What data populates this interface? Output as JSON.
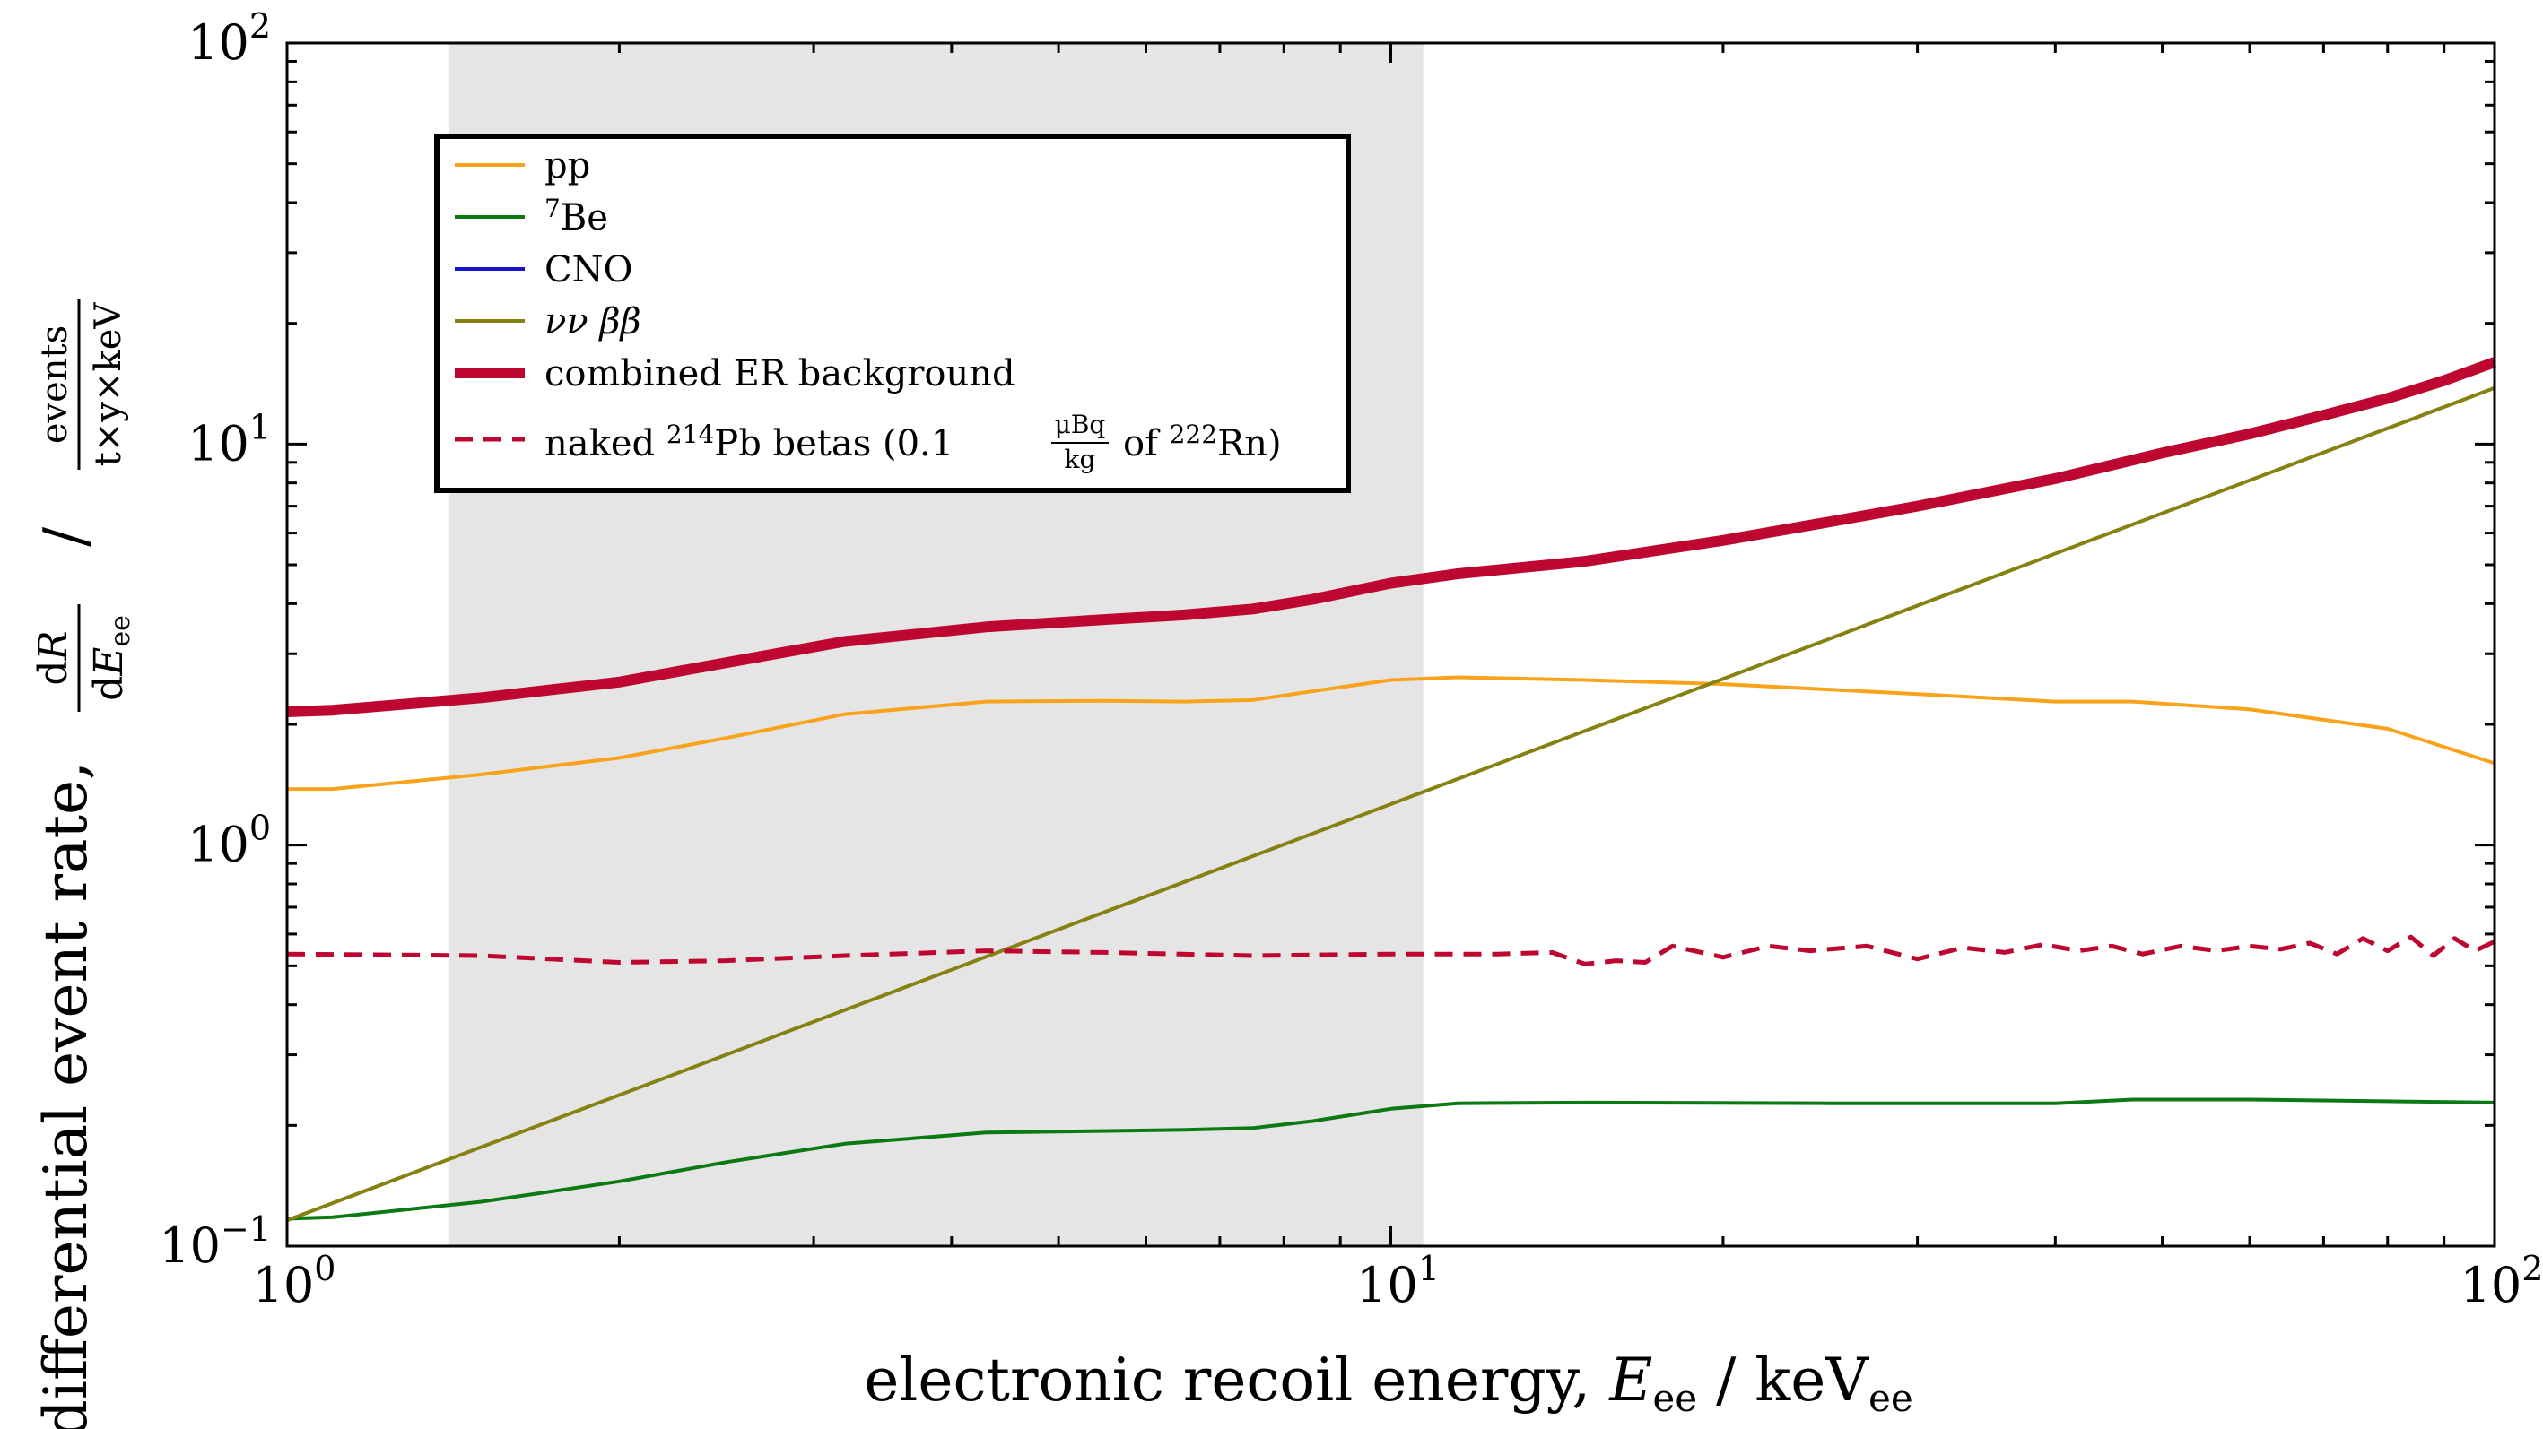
{
  "chart_data": {
    "type": "line",
    "xscale": "log",
    "yscale": "log",
    "xlim": [
      1,
      100
    ],
    "ylim": [
      0.1,
      100
    ],
    "xlabel": "electronic recoil energy, E_ee / keV_ee",
    "ylabel": "differential event rate, dR/dE_ee / events/(t×y×keV)",
    "x_ticks": [
      {
        "value": 1,
        "base": "10",
        "exp": "0"
      },
      {
        "value": 10,
        "base": "10",
        "exp": "1"
      },
      {
        "value": 100,
        "base": "10",
        "exp": "2"
      }
    ],
    "y_ticks": [
      {
        "value": 0.1,
        "base": "10",
        "exp": "−1"
      },
      {
        "value": 1,
        "base": "10",
        "exp": "0"
      },
      {
        "value": 10,
        "base": "10",
        "exp": "1"
      },
      {
        "value": 100,
        "base": "10",
        "exp": "2"
      }
    ],
    "shaded_region": {
      "x": [
        1.4,
        10.7
      ],
      "color": "#e5e5e5"
    },
    "grid": false,
    "legend_position": "upper-left",
    "series": [
      {
        "name": "pp",
        "color": "#f8a31b",
        "width": 4,
        "dash": "",
        "points": [
          [
            1.0,
            1.38
          ],
          [
            1.1,
            1.38
          ],
          [
            1.5,
            1.5
          ],
          [
            2.0,
            1.65
          ],
          [
            2.5,
            1.85
          ],
          [
            3.2,
            2.12
          ],
          [
            4.3,
            2.28
          ],
          [
            5.5,
            2.29
          ],
          [
            6.5,
            2.28
          ],
          [
            7.5,
            2.3
          ],
          [
            8.5,
            2.42
          ],
          [
            10.0,
            2.58
          ],
          [
            11.5,
            2.62
          ],
          [
            15.0,
            2.58
          ],
          [
            20.0,
            2.52
          ],
          [
            30.0,
            2.38
          ],
          [
            40.0,
            2.28
          ],
          [
            47.0,
            2.28
          ],
          [
            60.0,
            2.18
          ],
          [
            80.0,
            1.95
          ],
          [
            100.0,
            1.6
          ]
        ]
      },
      {
        "name": "7Be",
        "color": "#0c7a13",
        "width": 4,
        "dash": "",
        "points": [
          [
            1.0,
            0.117
          ],
          [
            1.1,
            0.118
          ],
          [
            1.5,
            0.129
          ],
          [
            2.0,
            0.145
          ],
          [
            2.5,
            0.162
          ],
          [
            3.2,
            0.18
          ],
          [
            4.3,
            0.192
          ],
          [
            6.5,
            0.195
          ],
          [
            7.5,
            0.197
          ],
          [
            8.5,
            0.205
          ],
          [
            10.0,
            0.22
          ],
          [
            11.5,
            0.227
          ],
          [
            15.0,
            0.228
          ],
          [
            25.0,
            0.227
          ],
          [
            40.0,
            0.227
          ],
          [
            47.0,
            0.232
          ],
          [
            60.0,
            0.232
          ],
          [
            100.0,
            0.228
          ]
        ]
      },
      {
        "name": "CNO",
        "color": "#1515cc",
        "width": 4,
        "dash": "",
        "points": []
      },
      {
        "name": "νν ββ",
        "color": "#858212",
        "width": 4,
        "dash": "",
        "points": [
          [
            1.0,
            0.116
          ],
          [
            100.0,
            13.8
          ]
        ]
      },
      {
        "name": "combined ER background",
        "color": "#be0730",
        "width": 12,
        "dash": "",
        "points": [
          [
            1.0,
            2.15
          ],
          [
            1.1,
            2.17
          ],
          [
            1.5,
            2.33
          ],
          [
            2.0,
            2.55
          ],
          [
            2.5,
            2.85
          ],
          [
            3.2,
            3.22
          ],
          [
            4.3,
            3.5
          ],
          [
            5.5,
            3.65
          ],
          [
            6.5,
            3.75
          ],
          [
            7.5,
            3.88
          ],
          [
            8.5,
            4.1
          ],
          [
            10.0,
            4.5
          ],
          [
            11.5,
            4.75
          ],
          [
            15.0,
            5.1
          ],
          [
            20.0,
            5.75
          ],
          [
            25.0,
            6.4
          ],
          [
            30.0,
            7.0
          ],
          [
            40.0,
            8.2
          ],
          [
            50.0,
            9.5
          ],
          [
            60.0,
            10.6
          ],
          [
            70.0,
            11.8
          ],
          [
            80.0,
            13.0
          ],
          [
            90.0,
            14.4
          ],
          [
            100.0,
            16.0
          ]
        ]
      },
      {
        "name": "naked 214Pb betas (0.1 μBq/kg of 222Rn)",
        "color": "#be0730",
        "width": 5,
        "dash": "20,12",
        "points": [
          [
            1.0,
            0.535
          ],
          [
            1.5,
            0.53
          ],
          [
            2.0,
            0.51
          ],
          [
            2.5,
            0.515
          ],
          [
            3.2,
            0.53
          ],
          [
            4.3,
            0.545
          ],
          [
            5.5,
            0.54
          ],
          [
            7.5,
            0.53
          ],
          [
            10.0,
            0.535
          ],
          [
            12.5,
            0.535
          ],
          [
            14.0,
            0.54
          ],
          [
            15.0,
            0.505
          ],
          [
            16.0,
            0.515
          ],
          [
            17.0,
            0.51
          ],
          [
            18.0,
            0.56
          ],
          [
            20.0,
            0.525
          ],
          [
            22.0,
            0.56
          ],
          [
            24.0,
            0.545
          ],
          [
            27.0,
            0.56
          ],
          [
            30.0,
            0.52
          ],
          [
            33.0,
            0.555
          ],
          [
            36.0,
            0.54
          ],
          [
            39.0,
            0.565
          ],
          [
            42.0,
            0.545
          ],
          [
            45.0,
            0.56
          ],
          [
            48.0,
            0.535
          ],
          [
            52.0,
            0.56
          ],
          [
            56.0,
            0.545
          ],
          [
            60.0,
            0.56
          ],
          [
            64.0,
            0.55
          ],
          [
            68.0,
            0.57
          ],
          [
            72.0,
            0.535
          ],
          [
            76.0,
            0.585
          ],
          [
            80.0,
            0.545
          ],
          [
            84.0,
            0.59
          ],
          [
            88.0,
            0.53
          ],
          [
            92.0,
            0.585
          ],
          [
            96.0,
            0.545
          ],
          [
            100.0,
            0.575
          ]
        ]
      }
    ]
  }
}
